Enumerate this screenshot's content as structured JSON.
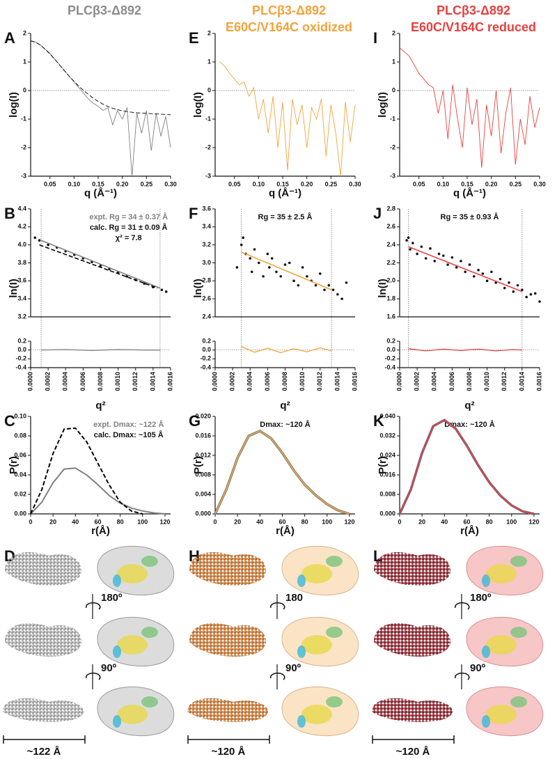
{
  "columns": [
    {
      "lines": [
        "PLCβ3-Δ892"
      ],
      "color": "#8c8c8c"
    },
    {
      "lines": [
        "PLCβ3-Δ892",
        "E60C/V164C oxidized"
      ],
      "color": "#f2a33a"
    },
    {
      "lines": [
        "PLCβ3-Δ892",
        "E60C/V164C reduced"
      ],
      "color": "#e8403f"
    }
  ],
  "chart_data": [
    {
      "type": "line",
      "panel": "A",
      "xlabel": "q (Å⁻¹)",
      "ylabel": "log(I)",
      "xlim": [
        0.01,
        0.3
      ],
      "xticks": [
        0.05,
        {
          "value": 0.1,
          "label": "0.10"
        },
        0.15,
        {
          "value": 0.2,
          "label": "0.20"
        },
        0.25,
        {
          "value": 0.3,
          "label": "0.30"
        }
      ],
      "ylim": [
        -3,
        2
      ],
      "yticks": [
        -3,
        -2,
        -1,
        0,
        1,
        2
      ],
      "refline": 0,
      "x": [
        0.01,
        0.02,
        0.03,
        0.04,
        0.05,
        0.06,
        0.07,
        0.08,
        0.09,
        0.1,
        0.11,
        0.12,
        0.13,
        0.14,
        0.15,
        0.16,
        0.17,
        0.18,
        0.19,
        0.2,
        0.21,
        0.22,
        0.23,
        0.24,
        0.25,
        0.26,
        0.27,
        0.28,
        0.29,
        0.3
      ],
      "series": [
        {
          "color": "#808080",
          "values": [
            1.75,
            1.7,
            1.6,
            1.45,
            1.3,
            1.1,
            0.9,
            0.7,
            0.5,
            0.3,
            0.1,
            -0.1,
            -0.3,
            -0.45,
            -0.55,
            -0.7,
            -0.6,
            -1.2,
            -0.7,
            -1.0,
            -0.6,
            -3.0,
            -0.8,
            -1.5,
            -0.7,
            -2.1,
            -0.8,
            -1.6,
            -0.9,
            -2.0
          ]
        },
        {
          "color": "#000000",
          "dash": true,
          "values": [
            1.74,
            1.69,
            1.59,
            1.45,
            1.28,
            1.09,
            0.89,
            0.69,
            0.5,
            0.32,
            0.15,
            0.0,
            -0.14,
            -0.27,
            -0.38,
            -0.48,
            -0.56,
            -0.62,
            -0.67,
            -0.71,
            -0.74,
            -0.76,
            -0.78,
            -0.79,
            -0.8,
            -0.81,
            -0.82,
            -0.83,
            -0.84,
            -0.85
          ]
        }
      ]
    },
    {
      "type": "scatter",
      "panel": "B",
      "xlabel": "q²",
      "ylabel": "ln(I)",
      "xlim": [
        0,
        0.0016
      ],
      "xticks": [
        {
          "value": 0,
          "label": "0.0000"
        },
        0.0002,
        0.0004,
        0.0006,
        0.0008,
        {
          "value": 0.001,
          "label": "0.0010"
        },
        0.0012,
        0.0014,
        0.0016
      ],
      "ylim": [
        3.2,
        4.4
      ],
      "yticks": [
        3.2,
        3.4,
        3.6,
        3.8,
        {
          "value": 4,
          "label": "4.0"
        },
        4.2,
        4.4
      ],
      "annotations": [
        {
          "text": "expt. Rg = 34 ± 0.37 Å",
          "color": "#808080"
        },
        {
          "text": "calc. Rg = 31 ± 0.09 Å",
          "color": "#111111"
        },
        {
          "text": "χ² = 7.8",
          "color": "#111111"
        }
      ],
      "fit_range": [
        0.00012,
        0.00148
      ],
      "point_color": "#111111",
      "x": [
        5e-05,
        0.0001,
        0.0002,
        0.0003,
        0.0004,
        0.0005,
        0.0006,
        0.0007,
        0.0008,
        0.0009,
        0.001,
        0.0011,
        0.0012,
        0.0013,
        0.0014,
        0.0015,
        0.00155
      ],
      "values": [
        4.08,
        4.05,
        4.0,
        3.97,
        3.93,
        3.89,
        3.85,
        3.81,
        3.77,
        3.73,
        3.69,
        3.65,
        3.61,
        3.57,
        3.53,
        3.5,
        3.48
      ],
      "fits": [
        {
          "color": "#808080",
          "x": [
            0.00012,
            0.00148
          ],
          "values": [
            4.05,
            3.52
          ]
        },
        {
          "color": "#000000",
          "dash": true,
          "x": [
            0.0001,
            0.00145
          ],
          "values": [
            4.0,
            3.52
          ]
        }
      ],
      "residual": {
        "ylim": [
          -0.4,
          0.2
        ],
        "yticks": [
          -0.4,
          -0.2,
          {
            "value": 0,
            "label": "0.0"
          },
          0.2
        ],
        "refline": 0,
        "color": "#808080",
        "x": [
          0.00012,
          0.0004,
          0.0007,
          0.001,
          0.0013,
          0.00148
        ],
        "values": [
          0,
          0.01,
          -0.01,
          0.01,
          0,
          0
        ]
      }
    },
    {
      "type": "line",
      "panel": "C",
      "xlabel": "r(Å)",
      "ylabel": "P(r)",
      "xlim": [
        0,
        125
      ],
      "xticks": [
        0,
        20,
        40,
        60,
        80,
        100,
        120
      ],
      "ylim": [
        0,
        0.1
      ],
      "yticks": [
        {
          "value": 0,
          "label": "0.00"
        },
        0.02,
        0.04,
        0.06,
        0.08,
        {
          "value": 0.1,
          "label": "0.10"
        }
      ],
      "annotations": [
        {
          "text": "expt. Dmax: ~122 Å",
          "color": "#808080"
        },
        {
          "text": "calc. Dmax: ~105 Å",
          "color": "#111111"
        }
      ],
      "x": [
        0,
        10,
        20,
        30,
        40,
        50,
        60,
        70,
        80,
        90,
        100,
        110,
        120
      ],
      "series": [
        {
          "color": "#808080",
          "values": [
            0,
            0.012,
            0.032,
            0.046,
            0.047,
            0.04,
            0.03,
            0.019,
            0.011,
            0.006,
            0.003,
            0.001,
            0
          ]
        },
        {
          "color": "#000000",
          "dash": true,
          "values": [
            0,
            0.025,
            0.062,
            0.087,
            0.088,
            0.074,
            0.052,
            0.03,
            0.012,
            0.003,
            0,
            null,
            null
          ]
        }
      ]
    },
    {
      "type": "line",
      "panel": "E",
      "xlabel": "q (Å⁻¹)",
      "ylabel": "log(I)",
      "xlim": [
        0.01,
        0.3
      ],
      "xticks": [
        0.05,
        {
          "value": 0.1,
          "label": "0.10"
        },
        0.15,
        {
          "value": 0.2,
          "label": "0.20"
        },
        0.25,
        {
          "value": 0.3,
          "label": "0.30"
        }
      ],
      "ylim": [
        -3,
        2
      ],
      "yticks": [
        -3,
        -2,
        -1,
        0,
        1,
        2
      ],
      "refline": 0,
      "x": [
        0.02,
        0.03,
        0.04,
        0.05,
        0.06,
        0.07,
        0.08,
        0.09,
        0.1,
        0.11,
        0.12,
        0.13,
        0.14,
        0.15,
        0.16,
        0.17,
        0.18,
        0.19,
        0.2,
        0.21,
        0.22,
        0.23,
        0.24,
        0.25,
        0.26,
        0.27,
        0.28,
        0.29,
        0.3
      ],
      "series": [
        {
          "color": "#f2a33a",
          "values": [
            1.0,
            0.85,
            0.6,
            0.4,
            0.2,
            0.3,
            -0.2,
            0.1,
            -1.0,
            -0.3,
            -1.5,
            -0.2,
            -2.0,
            -0.4,
            -2.8,
            -0.3,
            -1.2,
            -0.5,
            -2.0,
            -0.6,
            -1.0,
            -0.3,
            -2.3,
            -0.5,
            -1.5,
            -3.0,
            -0.4,
            -1.8,
            -0.5
          ]
        }
      ]
    },
    {
      "type": "scatter",
      "panel": "F",
      "xlabel": "q²",
      "ylabel": "ln(I)",
      "xlim": [
        0,
        0.0016
      ],
      "xticks": [
        {
          "value": 0,
          "label": "0.0000"
        },
        0.0002,
        0.0004,
        0.0006,
        0.0008,
        {
          "value": 0.001,
          "label": "0.0010"
        },
        0.0012,
        0.0014,
        0.0016
      ],
      "ylim": [
        2.4,
        3.6
      ],
      "yticks": [
        2.4,
        2.6,
        2.8,
        {
          "value": 3,
          "label": "3.0"
        },
        3.2,
        3.4,
        3.6
      ],
      "annotations": [
        {
          "text": "Rg = 35 ± 2.5 Å",
          "color": "#111111"
        }
      ],
      "fit_range": [
        0.0003,
        0.00133
      ],
      "point_color": "#111111",
      "x": [
        0.00025,
        0.0003,
        0.00032,
        0.00035,
        0.0004,
        0.00042,
        0.00045,
        0.0005,
        0.00055,
        0.0006,
        0.00062,
        0.00065,
        0.0007,
        0.00075,
        0.0008,
        0.00085,
        0.0009,
        0.00095,
        0.001,
        0.00105,
        0.0011,
        0.00115,
        0.0012,
        0.00125,
        0.0013,
        0.00135,
        0.0014,
        0.00145,
        0.0015
      ],
      "values": [
        2.95,
        3.2,
        3.28,
        3.1,
        3.05,
        2.9,
        3.15,
        3.0,
        2.85,
        3.1,
        2.95,
        3.05,
        2.9,
        2.85,
        2.98,
        3.0,
        2.8,
        2.75,
        2.95,
        2.85,
        2.8,
        2.75,
        2.88,
        2.7,
        2.75,
        2.7,
        2.65,
        2.6,
        2.78
      ],
      "fits": [
        {
          "color": "#f2a33a",
          "x": [
            0.0003,
            0.00133
          ],
          "values": [
            3.12,
            2.7
          ]
        }
      ],
      "residual": {
        "ylim": [
          -0.4,
          0.2
        ],
        "yticks": [
          -0.4,
          -0.2,
          {
            "value": 0,
            "label": "0.0"
          },
          0.2
        ],
        "refline": 0,
        "color": "#f2a33a",
        "x": [
          0.0003,
          0.00045,
          0.0006,
          0.00075,
          0.0009,
          0.00105,
          0.0012,
          0.00133
        ],
        "values": [
          0.08,
          -0.05,
          0.04,
          -0.06,
          0.03,
          -0.04,
          0.05,
          -0.02
        ]
      }
    },
    {
      "type": "line",
      "panel": "G",
      "xlabel": "r(Å)",
      "ylabel": "P(r)",
      "xlim": [
        0,
        125
      ],
      "xticks": [
        0,
        20,
        40,
        60,
        80,
        100,
        120
      ],
      "ylim": [
        0,
        0.02
      ],
      "yticks": [
        {
          "value": 0,
          "label": "0.000"
        },
        0.004,
        0.008,
        0.012,
        0.016,
        {
          "value": 0.02,
          "label": "0.020"
        }
      ],
      "annotations": [
        {
          "text": "Dmax: ~120 Å",
          "color": "#111111"
        }
      ],
      "x": [
        0,
        10,
        20,
        30,
        40,
        50,
        60,
        70,
        80,
        90,
        100,
        110,
        120
      ],
      "series": [
        {
          "color": "#f2a33a",
          "band_color": "#4d6f8f",
          "values": [
            0,
            0.005,
            0.0115,
            0.016,
            0.017,
            0.0155,
            0.0125,
            0.009,
            0.006,
            0.0038,
            0.002,
            0.0007,
            0
          ]
        }
      ]
    },
    {
      "type": "line",
      "panel": "I",
      "xlabel": "q (Å⁻¹)",
      "ylabel": "log(I)",
      "xlim": [
        0.01,
        0.3
      ],
      "xticks": [
        0.05,
        {
          "value": 0.1,
          "label": "0.10"
        },
        0.15,
        {
          "value": 0.2,
          "label": "0.20"
        },
        0.25,
        {
          "value": 0.3,
          "label": "0.30"
        }
      ],
      "ylim": [
        -3,
        2
      ],
      "yticks": [
        -3,
        -2,
        -1,
        0,
        1,
        2
      ],
      "refline": 0,
      "x": [
        0.01,
        0.02,
        0.03,
        0.04,
        0.05,
        0.06,
        0.07,
        0.08,
        0.09,
        0.1,
        0.11,
        0.12,
        0.13,
        0.14,
        0.15,
        0.16,
        0.17,
        0.18,
        0.19,
        0.2,
        0.21,
        0.22,
        0.23,
        0.24,
        0.25,
        0.26,
        0.27,
        0.28,
        0.29,
        0.3
      ],
      "series": [
        {
          "color": "#e8403f",
          "values": [
            1.5,
            1.35,
            1.2,
            0.9,
            0.6,
            0.4,
            0.2,
            0.1,
            -0.8,
            0.0,
            -1.7,
            0.2,
            -1.0,
            -2.0,
            0.1,
            -1.2,
            -0.3,
            -2.7,
            -0.5,
            -1.6,
            0.0,
            -2.2,
            -0.8,
            0.1,
            -2.6,
            -1.0,
            -1.9,
            -0.2,
            -1.3,
            -0.6
          ]
        }
      ]
    },
    {
      "type": "scatter",
      "panel": "J",
      "xlabel": "q²",
      "ylabel": "ln(I)",
      "xlim": [
        0,
        0.0016
      ],
      "xticks": [
        {
          "value": 0,
          "label": "0.0000"
        },
        0.0002,
        0.0004,
        0.0006,
        0.0008,
        {
          "value": 0.001,
          "label": "0.0010"
        },
        0.0012,
        0.0014,
        0.0016
      ],
      "ylim": [
        1.6,
        2.8
      ],
      "yticks": [
        1.6,
        1.8,
        {
          "value": 2,
          "label": "2.0"
        },
        2.2,
        2.4,
        2.6,
        2.8
      ],
      "annotations": [
        {
          "text": "Rg = 35 ± 0.93 Å",
          "color": "#111111"
        }
      ],
      "fit_range": [
        0.0001,
        0.0014
      ],
      "point_color": "#111111",
      "x": [
        8e-05,
        0.0001,
        0.00012,
        0.00015,
        0.0002,
        0.00025,
        0.0003,
        0.00035,
        0.0004,
        0.00045,
        0.0005,
        0.00055,
        0.0006,
        0.00065,
        0.0007,
        0.00075,
        0.0008,
        0.00085,
        0.0009,
        0.00095,
        0.001,
        0.00105,
        0.0011,
        0.00115,
        0.0012,
        0.00125,
        0.0013,
        0.00135,
        0.0014,
        0.00145,
        0.0015,
        0.00155,
        0.0016
      ],
      "values": [
        2.45,
        2.48,
        2.35,
        2.42,
        2.3,
        2.38,
        2.25,
        2.36,
        2.22,
        2.3,
        2.28,
        2.18,
        2.26,
        2.15,
        2.22,
        2.1,
        2.18,
        2.05,
        2.12,
        2.08,
        2.0,
        2.1,
        1.98,
        2.02,
        1.92,
        1.98,
        1.88,
        1.95,
        1.9,
        1.82,
        1.85,
        1.86,
        1.77
      ],
      "fits": [
        {
          "color": "#e8403f",
          "x": [
            0.0001,
            0.0014
          ],
          "values": [
            2.38,
            1.88
          ]
        }
      ],
      "residual": {
        "ylim": [
          -0.4,
          0.2
        ],
        "yticks": [
          -0.4,
          -0.2,
          {
            "value": 0,
            "label": "0.0"
          },
          0.2
        ],
        "refline": 0,
        "color": "#e8403f",
        "x": [
          0.0001,
          0.0003,
          0.0005,
          0.0007,
          0.0009,
          0.0011,
          0.0013,
          0.0014
        ],
        "values": [
          0.03,
          -0.02,
          0.02,
          -0.01,
          0.02,
          -0.02,
          0.01,
          0
        ]
      }
    },
    {
      "type": "line",
      "panel": "K",
      "xlabel": "r(Å)",
      "ylabel": "P(r)",
      "xlim": [
        0,
        125
      ],
      "xticks": [
        0,
        20,
        40,
        60,
        80,
        100,
        120
      ],
      "ylim": [
        0,
        0.04
      ],
      "yticks": [
        {
          "value": 0,
          "label": "0.000"
        },
        0.008,
        0.016,
        0.024,
        0.032,
        {
          "value": 0.04,
          "label": "0.040"
        }
      ],
      "annotations": [
        {
          "text": "Dmax: ~120 Å",
          "color": "#111111"
        }
      ],
      "x": [
        0,
        10,
        20,
        30,
        40,
        50,
        60,
        70,
        80,
        90,
        100,
        110,
        120
      ],
      "series": [
        {
          "color": "#e8403f",
          "band_color": "#4d6f8f",
          "values": [
            0,
            0.01,
            0.025,
            0.036,
            0.0385,
            0.035,
            0.028,
            0.02,
            0.013,
            0.0075,
            0.0035,
            0.001,
            0
          ]
        }
      ]
    }
  ],
  "models": [
    {
      "panel": "D",
      "rotations": [
        "180º",
        "90º"
      ],
      "scale": "~122 Å"
    },
    {
      "panel": "H",
      "rotations": [
        "180",
        "90º"
      ],
      "scale": "~120 Å"
    },
    {
      "panel": "L",
      "rotations": [
        "180º",
        "90º"
      ],
      "scale": "~120 Å"
    }
  ]
}
